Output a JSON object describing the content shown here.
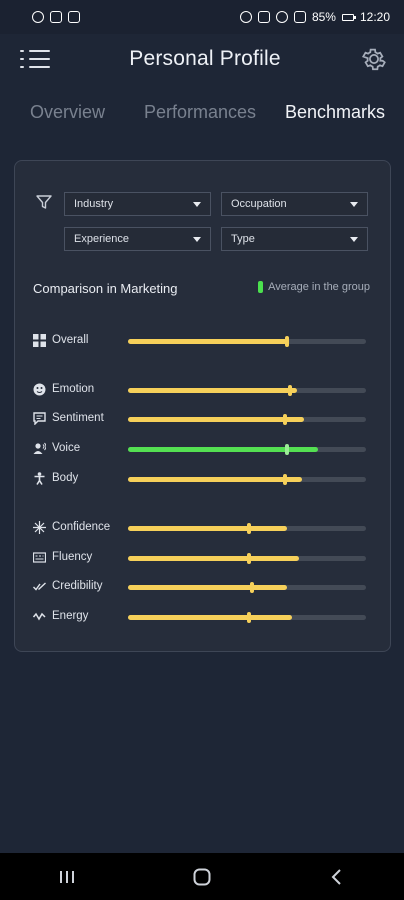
{
  "status_bar": {
    "time": "12:20",
    "battery": "85%"
  },
  "header": {
    "title": "Personal Profile",
    "menu_icon": "menu-icon",
    "settings_icon": "gear-icon"
  },
  "tabs": [
    {
      "label": "Overview",
      "active": false
    },
    {
      "label": "Performances",
      "active": false
    },
    {
      "label": "Benchmarks",
      "active": true
    }
  ],
  "filters": {
    "industry": "Industry",
    "occupation": "Occupation",
    "experience": "Experience",
    "type": "Type"
  },
  "comparison": {
    "title": "Comparison in Marketing",
    "legend": "Average in the group",
    "legend_color": "#4be04e"
  },
  "metrics": [
    {
      "label": "Overall",
      "icon": "grid-icon",
      "value": 0.67,
      "average": 0.67,
      "color": "#f6d05a"
    },
    {
      "label": "Emotion",
      "icon": "face-icon",
      "value": 0.71,
      "average": 0.68,
      "color": "#f6d05a"
    },
    {
      "label": "Sentiment",
      "icon": "speech-bubble-icon",
      "value": 0.74,
      "average": 0.66,
      "color": "#f6d05a"
    },
    {
      "label": "Voice",
      "icon": "speaker-person-icon",
      "value": 0.8,
      "average": 0.67,
      "color": "#54e052"
    },
    {
      "label": "Body",
      "icon": "person-icon",
      "value": 0.73,
      "average": 0.66,
      "color": "#f6d05a"
    },
    {
      "label": "Confidence",
      "icon": "sparkle-icon",
      "value": 0.67,
      "average": 0.51,
      "color": "#f6d05a"
    },
    {
      "label": "Fluency",
      "icon": "fluency-icon",
      "value": 0.72,
      "average": 0.51,
      "color": "#f6d05a"
    },
    {
      "label": "Credibility",
      "icon": "checkmarks-icon",
      "value": 0.67,
      "average": 0.52,
      "color": "#f6d05a"
    },
    {
      "label": "Energy",
      "icon": "wave-icon",
      "value": 0.69,
      "average": 0.51,
      "color": "#f6d05a"
    }
  ]
}
